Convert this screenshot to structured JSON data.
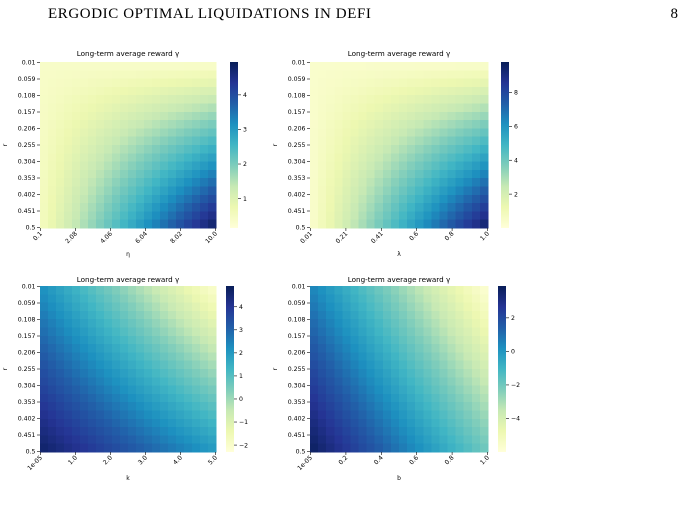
{
  "header": {
    "running_title": "ERGODIC OPTIMAL LIQUIDATIONS IN DEFI",
    "page_number": "8"
  },
  "colormap": [
    "#ffffd9",
    "#edf8b1",
    "#c7e9b4",
    "#7fcdbb",
    "#41b6c4",
    "#1d91c0",
    "#225ea8",
    "#253494",
    "#081d58"
  ],
  "chart_data": [
    {
      "type": "heatmap",
      "title": "Long-term average reward γ",
      "xlabel": "η",
      "ylabel": "r",
      "x_ticks": [
        "0.1",
        "2.08",
        "4.06",
        "6.04",
        "8.02",
        "10.0"
      ],
      "y_ticks": [
        "0.01",
        "0.059",
        "0.108",
        "0.157",
        "0.206",
        "0.255",
        "0.304",
        "0.353",
        "0.402",
        "0.451",
        "0.5"
      ],
      "vrange": [
        0.15,
        4.95
      ],
      "colorbar_ticks": [
        1,
        2,
        3,
        4
      ],
      "corner_values": {
        "top_left": 0.4,
        "top_right": 0.3,
        "bottom_left": 0.5,
        "bottom_right": 4.9
      }
    },
    {
      "type": "heatmap",
      "title": "Long-term average reward γ",
      "xlabel": "λ",
      "ylabel": "r",
      "x_ticks": [
        "0.01",
        "0.21",
        "0.41",
        "0.6",
        "0.8",
        "1.0"
      ],
      "y_ticks": [
        "0.01",
        "0.059",
        "0.108",
        "0.157",
        "0.206",
        "0.255",
        "0.304",
        "0.353",
        "0.402",
        "0.451",
        "0.5"
      ],
      "vrange": [
        0.0,
        9.8
      ],
      "colorbar_ticks": [
        2,
        4,
        6,
        8
      ],
      "corner_values": {
        "top_left": 0.4,
        "top_right": 0.3,
        "bottom_left": 0.3,
        "bottom_right": 9.6
      }
    },
    {
      "type": "heatmap",
      "title": "Long-term average reward γ",
      "xlabel": "k",
      "ylabel": "r",
      "x_ticks": [
        "1e-05",
        "1.0",
        "2.0",
        "3.0",
        "4.0",
        "5.0"
      ],
      "y_ticks": [
        "0.01",
        "0.059",
        "0.108",
        "0.157",
        "0.206",
        "0.255",
        "0.304",
        "0.353",
        "0.402",
        "0.451",
        "0.5"
      ],
      "vrange": [
        -2.3,
        4.9
      ],
      "colorbar_ticks": [
        -2,
        -1,
        0,
        1,
        2,
        3,
        4
      ],
      "corner_values": {
        "top_left": 2.2,
        "top_right": -2.1,
        "bottom_left": 4.7,
        "bottom_right": 2.0
      }
    },
    {
      "type": "heatmap",
      "title": "Long-term average reward γ",
      "xlabel": "b",
      "ylabel": "r",
      "x_ticks": [
        "1e-05",
        "0.2",
        "0.4",
        "0.6",
        "0.8",
        "1.0"
      ],
      "y_ticks": [
        "0.01",
        "0.059",
        "0.108",
        "0.157",
        "0.206",
        "0.255",
        "0.304",
        "0.353",
        "0.402",
        "0.451",
        "0.5"
      ],
      "vrange": [
        -6.0,
        3.9
      ],
      "colorbar_ticks": [
        -4,
        -2,
        0,
        2
      ],
      "corner_values": {
        "top_left": 0.5,
        "top_right": -5.9,
        "bottom_left": 3.8,
        "bottom_right": -2.0
      }
    }
  ]
}
